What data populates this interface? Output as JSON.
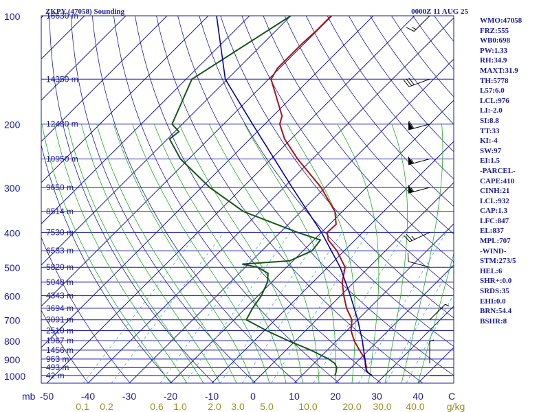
{
  "header": {
    "station": "ZKPY (47058) Sounding",
    "time": "0000Z 11 AUG 25"
  },
  "indices": [
    "WMO:47058",
    "FRZ:555",
    "WB0:698",
    "PW:1.33",
    "RH:34.9",
    "MAXT:31.9",
    "TH:5778",
    "L57:6.0",
    "LCL:976",
    "LI:-2.0",
    "SI:8.8",
    "TT:33",
    "KI:-4",
    "SW:97",
    "EI:1.5",
    "-PARCEL-",
    "CAPE:410",
    "CINH:21",
    "LCL:932",
    "CAP:1.3",
    "LFC:847",
    "EL:837",
    "MPL:707",
    "-WIND-",
    "STM:273/5",
    "HEL:6",
    "SHR+:0.0",
    "SRDS:35",
    "EHI:0.0",
    "BRN:54.4",
    "BSHR:8"
  ],
  "colors": {
    "frame": "#1a1aa0",
    "isotherm": "#1a1aa0",
    "dry_adiabat": "#1a1aa0",
    "moist_adiabat": "#22aa22",
    "mixing_ratio": "#44aacc",
    "temperature": "#b01010",
    "dewpoint": "#135513",
    "parcel": "#0000aa",
    "wind_barb": "#000000",
    "mixing_label": "#a08a1c"
  },
  "chart_data": {
    "type": "skew-t",
    "pressure_ticks": [
      100,
      200,
      300,
      400,
      500,
      600,
      700,
      800,
      900,
      1000
    ],
    "pressure_unit_label": "mb",
    "temperature_ticks": [
      -50,
      -40,
      -30,
      -20,
      -10,
      0,
      10,
      20,
      30,
      40
    ],
    "mixing_ratio_ticks": [
      "0.1",
      "0.2",
      "0.6",
      "1.0",
      "2.0",
      "3.0",
      "5.0",
      "10.0",
      "20.0",
      "30.0",
      "40.0"
    ],
    "mixing_ratio_unit": "g/kg",
    "temperature_axis_end_label": "C",
    "height_levels": [
      {
        "p": 100,
        "label": "16630 m"
      },
      {
        "p": 150,
        "label": "14350 m"
      },
      {
        "p": 200,
        "label": "12480 m"
      },
      {
        "p": 250,
        "label": "10950 m"
      },
      {
        "p": 300,
        "label": "9650 m"
      },
      {
        "p": 350,
        "label": "8514 m"
      },
      {
        "p": 400,
        "label": "7530 m"
      },
      {
        "p": 450,
        "label": "6533 m"
      },
      {
        "p": 500,
        "label": "5820 m"
      },
      {
        "p": 550,
        "label": "5048 m"
      },
      {
        "p": 600,
        "label": "4343 m"
      },
      {
        "p": 650,
        "label": "3694 m"
      },
      {
        "p": 700,
        "label": "3091 m"
      },
      {
        "p": 750,
        "label": "2510 m"
      },
      {
        "p": 800,
        "label": "1967 m"
      },
      {
        "p": 850,
        "label": "1456 m"
      },
      {
        "p": 900,
        "label": "963 m"
      },
      {
        "p": 950,
        "label": "493 m"
      },
      {
        "p": 1000,
        "label": "42 m"
      }
    ],
    "temperature_profile": [
      {
        "p": 1000,
        "t": 27.0
      },
      {
        "p": 980,
        "t": 25.2
      },
      {
        "p": 960,
        "t": 24.0
      },
      {
        "p": 950,
        "t": 23.7
      },
      {
        "p": 925,
        "t": 22.5
      },
      {
        "p": 900,
        "t": 21.3
      },
      {
        "p": 850,
        "t": 17.8
      },
      {
        "p": 800,
        "t": 14.2
      },
      {
        "p": 750,
        "t": 11.0
      },
      {
        "p": 700,
        "t": 8.6
      },
      {
        "p": 650,
        "t": 4.5
      },
      {
        "p": 600,
        "t": 0.8
      },
      {
        "p": 550,
        "t": -2.9
      },
      {
        "p": 500,
        "t": -5.8
      },
      {
        "p": 450,
        "t": -11.8
      },
      {
        "p": 420,
        "t": -16.5
      },
      {
        "p": 400,
        "t": -18.6
      },
      {
        "p": 380,
        "t": -18.4
      },
      {
        "p": 350,
        "t": -21.8
      },
      {
        "p": 300,
        "t": -31.0
      },
      {
        "p": 250,
        "t": -43.6
      },
      {
        "p": 220,
        "t": -51.6
      },
      {
        "p": 200,
        "t": -56.4
      },
      {
        "p": 190,
        "t": -57.8
      },
      {
        "p": 150,
        "t": -69.4
      },
      {
        "p": 140,
        "t": -70.5
      },
      {
        "p": 120,
        "t": -70.5
      },
      {
        "p": 110,
        "t": -70.2
      },
      {
        "p": 100,
        "t": -70.2
      }
    ],
    "dewpoint_profile": [
      {
        "p": 1000,
        "td": 18.0
      },
      {
        "p": 980,
        "td": 17.5
      },
      {
        "p": 950,
        "td": 16.5
      },
      {
        "p": 925,
        "td": 15.0
      },
      {
        "p": 900,
        "td": 12.5
      },
      {
        "p": 850,
        "td": 6.0
      },
      {
        "p": 800,
        "td": -1.8
      },
      {
        "p": 750,
        "td": -9.5
      },
      {
        "p": 700,
        "td": -17.0
      },
      {
        "p": 650,
        "td": -18.3
      },
      {
        "p": 600,
        "td": -19.2
      },
      {
        "p": 550,
        "td": -21.0
      },
      {
        "p": 520,
        "td": -23.0
      },
      {
        "p": 500,
        "td": -27.0
      },
      {
        "p": 490,
        "td": -31.5
      },
      {
        "p": 480,
        "td": -20.8
      },
      {
        "p": 450,
        "td": -17.8
      },
      {
        "p": 420,
        "td": -18.4
      },
      {
        "p": 400,
        "td": -25.8
      },
      {
        "p": 350,
        "td": -44.0
      },
      {
        "p": 300,
        "td": -58.0
      },
      {
        "p": 250,
        "td": -72.0
      },
      {
        "p": 220,
        "td": -79.5
      },
      {
        "p": 210,
        "td": -79.0
      },
      {
        "p": 200,
        "td": -82.5
      },
      {
        "p": 150,
        "td": -88.6
      },
      {
        "p": 100,
        "td": -80.0
      }
    ],
    "parcel_profile": [
      {
        "p": 1000,
        "t": 27.0
      },
      {
        "p": 976,
        "t": 24.8
      },
      {
        "p": 932,
        "t": 22.7
      },
      {
        "p": 900,
        "t": 21.3
      },
      {
        "p": 850,
        "t": 18.8
      },
      {
        "p": 800,
        "t": 16.2
      },
      {
        "p": 700,
        "t": 10.0
      },
      {
        "p": 600,
        "t": 2.4
      },
      {
        "p": 500,
        "t": -7.0
      },
      {
        "p": 400,
        "t": -20.0
      },
      {
        "p": 300,
        "t": -38.0
      },
      {
        "p": 200,
        "t": -63.0
      },
      {
        "p": 150,
        "t": -80.5
      },
      {
        "p": 100,
        "t": -98.0
      }
    ],
    "wind_barbs": [
      {
        "p": 100,
        "dir": 225,
        "kt": 15
      },
      {
        "p": 150,
        "dir": 250,
        "kt": 30
      },
      {
        "p": 200,
        "dir": 255,
        "kt": 60
      },
      {
        "p": 250,
        "dir": 255,
        "kt": 55
      },
      {
        "p": 300,
        "dir": 255,
        "kt": 55
      },
      {
        "p": 400,
        "dir": 245,
        "kt": 25
      },
      {
        "p": 500,
        "dir": 285,
        "kt": 10
      },
      {
        "p": 700,
        "dir": 45,
        "kt": 5
      },
      {
        "p": 925,
        "dir": 0,
        "kt": 5
      },
      {
        "p": 1000,
        "dir": 90,
        "kt": 0
      }
    ]
  }
}
